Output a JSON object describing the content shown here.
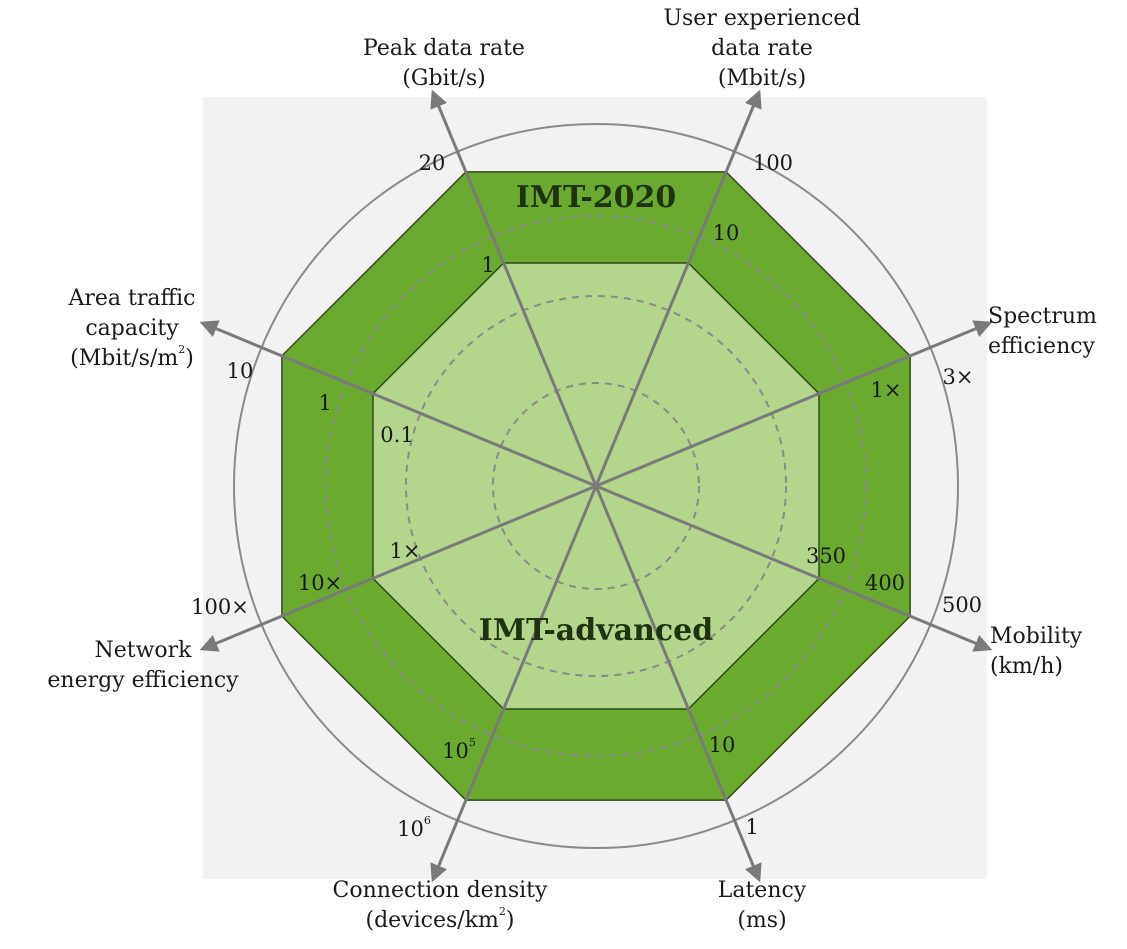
{
  "chart_data": {
    "type": "radar",
    "axes": [
      {
        "id": "peak",
        "title": [
          "Peak data rate",
          "(Gbit/s)"
        ],
        "imt_advanced": "1",
        "imt_2020": "20"
      },
      {
        "id": "user",
        "title": [
          "User experienced",
          "data rate",
          "(Mbit/s)"
        ],
        "imt_advanced": "10",
        "imt_2020": "100"
      },
      {
        "id": "spectrum",
        "title": [
          "Spectrum",
          "efficiency"
        ],
        "imt_advanced": "1×",
        "imt_2020": "3×"
      },
      {
        "id": "mobility",
        "title": [
          "Mobility",
          "(km/h)"
        ],
        "imt_advanced": "350",
        "imt_2020": "500",
        "intermediate": "400"
      },
      {
        "id": "latency",
        "title": [
          "Latency",
          "(ms)"
        ],
        "imt_advanced": "10",
        "imt_2020": "1"
      },
      {
        "id": "connection",
        "title": [
          "Connection density",
          "(devices/km",
          "2",
          ")"
        ],
        "imt_advanced": "10",
        "imt_advanced_sup": "5",
        "imt_2020": "10",
        "imt_2020_sup": "6"
      },
      {
        "id": "energy",
        "title": [
          "Network",
          "energy efficiency"
        ],
        "imt_advanced": "1×",
        "imt_2020": "100×",
        "intermediate": "10×"
      },
      {
        "id": "area",
        "title": [
          "Area traffic",
          "capacity",
          "(Mbit/s/m",
          "2",
          ")"
        ],
        "imt_advanced": "0.1",
        "imt_2020": "10",
        "intermediate": "1"
      }
    ],
    "series": [
      {
        "name": "IMT-2020",
        "color": "#6aaa2f",
        "normalized_extent": [
          1,
          1,
          1,
          1,
          1,
          1,
          1,
          1
        ]
      },
      {
        "name": "IMT-advanced",
        "color": "#b3d68c",
        "normalized_extent": [
          0.71,
          0.71,
          0.71,
          0.71,
          0.71,
          0.71,
          0.71,
          0.71
        ]
      }
    ]
  },
  "colors": {
    "outer_fill": "#6aaa2f",
    "inner_fill": "#b3d68c",
    "stroke": "#2e4a18",
    "axis": "#7a7a7a",
    "circle": "#8a8a8a",
    "dashed": "#8a8a8a",
    "background_panel": "#f2f2f2"
  }
}
